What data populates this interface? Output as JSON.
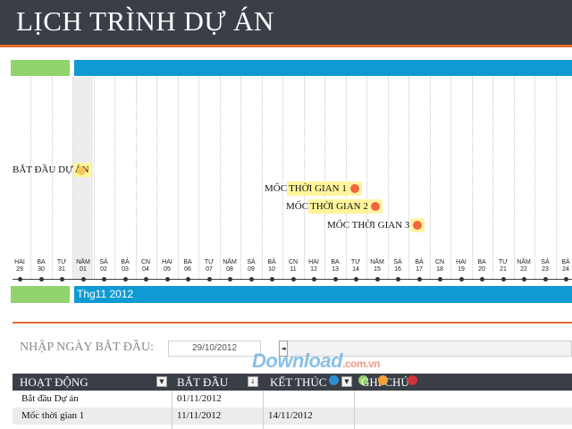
{
  "title": "LỊCH TRÌNH DỰ ÁN",
  "colors": {
    "header_bg": "#3a3f47",
    "accent_orange": "#e36c2b",
    "green": "#92d36e",
    "blue": "#0f9bd2",
    "milestone_dot": "#f2673a",
    "highlight": "#fff59a"
  },
  "timeline": {
    "month_label": "Thg11 2012",
    "days": [
      {
        "dow": "HAI",
        "num": "29"
      },
      {
        "dow": "BA",
        "num": "30"
      },
      {
        "dow": "TƯ",
        "num": "31"
      },
      {
        "dow": "NĂM",
        "num": "01"
      },
      {
        "dow": "SÁ",
        "num": "02"
      },
      {
        "dow": "BẢ",
        "num": "03"
      },
      {
        "dow": "CN",
        "num": "04"
      },
      {
        "dow": "HAI",
        "num": "05"
      },
      {
        "dow": "BA",
        "num": "06"
      },
      {
        "dow": "TƯ",
        "num": "07"
      },
      {
        "dow": "NĂM",
        "num": "08"
      },
      {
        "dow": "SÁ",
        "num": "09"
      },
      {
        "dow": "BẢ",
        "num": "10"
      },
      {
        "dow": "CN",
        "num": "11"
      },
      {
        "dow": "HAI",
        "num": "12"
      },
      {
        "dow": "BA",
        "num": "13"
      },
      {
        "dow": "TƯ",
        "num": "14"
      },
      {
        "dow": "NĂM",
        "num": "15"
      },
      {
        "dow": "SÁ",
        "num": "16"
      },
      {
        "dow": "BẢ",
        "num": "17"
      },
      {
        "dow": "CN",
        "num": "18"
      },
      {
        "dow": "HAI",
        "num": "19"
      },
      {
        "dow": "BA",
        "num": "20"
      },
      {
        "dow": "TƯ",
        "num": "21"
      },
      {
        "dow": "NĂM",
        "num": "22"
      },
      {
        "dow": "SÁ",
        "num": "23"
      },
      {
        "dow": "BẢ",
        "num": "24"
      }
    ],
    "milestones": [
      {
        "label_plain": "BẮT ĐẦU DỰ ",
        "label_hl": "ÁN"
      },
      {
        "label_plain": "MỐC ",
        "label_hl": "THỜI GIAN 1"
      },
      {
        "label_plain": "MỐC ",
        "label_hl": "THỜI GIAN 2"
      },
      {
        "label_plain": "MỐC THỜI GIAN 3",
        "label_hl": ""
      }
    ]
  },
  "controls": {
    "start_date_label": "NHẬP NGÀY BẮT ĐẦU:",
    "start_date_value": "29/10/2012",
    "scroll_left_icon": "◄"
  },
  "table": {
    "headers": {
      "activity": "HOẠT ĐỘNG",
      "start": "BẮT ĐẦU",
      "end": "KẾT THÚC",
      "note": "GHI CHÚ"
    },
    "rows": [
      {
        "activity": "Bắt đầu Dự án",
        "start": "01/11/2012",
        "end": ""
      },
      {
        "activity": "Mốc thời gian 1",
        "start": "11/11/2012",
        "end": "14/11/2012"
      }
    ]
  },
  "watermark": {
    "main": "Download",
    "sub": ".com.vn"
  }
}
